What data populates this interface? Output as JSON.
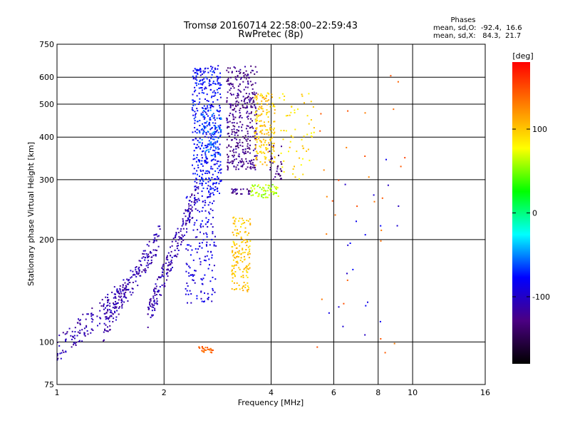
{
  "chart_data": {
    "type": "scatter",
    "title": "Tromsø 20160714 22:58:00–22:59:43",
    "subtitle": "RwPretec (8p)",
    "xlabel": "Frequency [MHz]",
    "ylabel": "Stationary phase Virtual Height [km]",
    "x_scale": "log",
    "y_scale": "log",
    "xlim": [
      1,
      16
    ],
    "ylim": [
      75,
      750
    ],
    "x_ticks": [
      1,
      2,
      4,
      6,
      8,
      10,
      16
    ],
    "y_ticks": [
      75,
      100,
      200,
      300,
      400,
      500,
      600,
      750
    ],
    "grid": true,
    "phase_stats": {
      "heading": "Phases",
      "line_o": "mean, sd,O:  -92.4,  16.6",
      "line_x": "mean, sd,X:   84.3,  21.7"
    },
    "colorbar": {
      "label": "[deg]",
      "range": [
        -180,
        180
      ],
      "ticks": [
        100,
        0,
        -100
      ],
      "colors": [
        "#000000",
        "#4b0082",
        "#0000ff",
        "#00ffff",
        "#00ff00",
        "#ffff00",
        "#ff8000",
        "#ff0000"
      ]
    },
    "clusters": [
      {
        "x": [
          1.0,
          1.6
        ],
        "y": [
          95,
          145
        ],
        "phase": -110,
        "n": 160,
        "shape": "ramp"
      },
      {
        "x": [
          1.35,
          1.95
        ],
        "y": [
          110,
          205
        ],
        "phase": -110,
        "n": 180,
        "shape": "ramp"
      },
      {
        "x": [
          1.8,
          2.5
        ],
        "y": [
          120,
          280
        ],
        "phase": -110,
        "n": 220,
        "shape": "ramp"
      },
      {
        "x": [
          2.3,
          2.8
        ],
        "y": [
          130,
          270
        ],
        "phase": -90,
        "n": 160,
        "shape": "box"
      },
      {
        "x": [
          2.4,
          2.9
        ],
        "y": [
          270,
          650
        ],
        "phase": -80,
        "n": 420,
        "shape": "box"
      },
      {
        "x": [
          2.5,
          2.9
        ],
        "y": [
          350,
          480
        ],
        "phase": -60,
        "n": 90,
        "shape": "box"
      },
      {
        "x": [
          3.0,
          3.65
        ],
        "y": [
          320,
          650
        ],
        "phase": -125,
        "n": 360,
        "shape": "box"
      },
      {
        "x": [
          3.1,
          3.5
        ],
        "y": [
          140,
          235
        ],
        "phase": 100,
        "n": 160,
        "shape": "box"
      },
      {
        "x": [
          3.6,
          4.1
        ],
        "y": [
          330,
          540
        ],
        "phase": 100,
        "n": 170,
        "shape": "box"
      },
      {
        "x": [
          3.5,
          4.2
        ],
        "y": [
          265,
          290
        ],
        "phase": 60,
        "n": 60,
        "shape": "box"
      },
      {
        "x": [
          3.1,
          3.5
        ],
        "y": [
          272,
          282
        ],
        "phase": -125,
        "n": 25,
        "shape": "box"
      },
      {
        "x": [
          3.9,
          4.3
        ],
        "y": [
          300,
          380
        ],
        "phase": -130,
        "n": 35,
        "shape": "box"
      },
      {
        "x": [
          4.2,
          5.3
        ],
        "y": [
          300,
          550
        ],
        "phase": 90,
        "n": 60,
        "shape": "box"
      },
      {
        "x": [
          2.5,
          2.75
        ],
        "y": [
          93,
          97
        ],
        "phase": 140,
        "n": 25,
        "shape": "box"
      },
      {
        "x": [
          5.2,
          9.6
        ],
        "y": [
          80,
          620
        ],
        "phase": 140,
        "n": 30,
        "shape": "box"
      },
      {
        "x": [
          5.6,
          9.2
        ],
        "y": [
          100,
          430
        ],
        "phase": -90,
        "n": 20,
        "shape": "box"
      }
    ]
  }
}
